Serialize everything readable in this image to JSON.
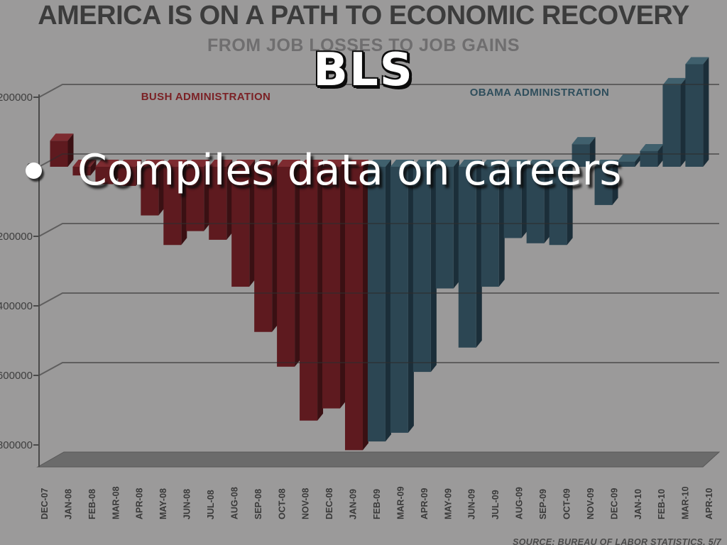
{
  "header": {
    "title": "AMERICA IS ON A PATH TO ECONOMIC RECOVERY",
    "subtitle": "FROM JOB LOSSES TO JOB GAINS"
  },
  "overlay": {
    "heading": "BLS",
    "bullet_text": "Compiles data on careers"
  },
  "chart_data": {
    "type": "bar",
    "title": "AMERICA IS ON A PATH TO ECONOMIC RECOVERY",
    "subtitle": "FROM JOB LOSSES TO JOB GAINS",
    "xlabel": "",
    "ylabel": "",
    "ylim": [
      -800000,
      200000
    ],
    "grid": true,
    "legend_position": "none",
    "y_tick_values": [
      200000,
      0,
      -200000,
      -400000,
      -600000,
      -800000
    ],
    "y_tick_labels_visible": [
      "00000",
      "0",
      "00000",
      "00000",
      "00000",
      "00000"
    ],
    "categories": [
      "DEC-07",
      "JAN-08",
      "FEB-08",
      "MAR-08",
      "APR-08",
      "MAY-08",
      "JUN-08",
      "JUL-08",
      "AUG-08",
      "SEP-08",
      "OCT-08",
      "NOV-08",
      "DEC-08",
      "JAN-09",
      "FEB-09",
      "MAR-09",
      "APR-09",
      "MAY-09",
      "JUN-09",
      "JUL-09",
      "AUG-09",
      "SEP-09",
      "OCT-09",
      "NOV-09",
      "DEC-09",
      "JAN-10",
      "FEB-10",
      "MAR-10",
      "APR-10"
    ],
    "values": [
      75000,
      -25000,
      -50000,
      -55000,
      -140000,
      -225000,
      -185000,
      -210000,
      -345000,
      -475000,
      -575000,
      -730000,
      -695000,
      -815000,
      -790000,
      -765000,
      -590000,
      -350000,
      -520000,
      -345000,
      -205000,
      -220000,
      -225000,
      65000,
      -110000,
      15000,
      45000,
      235000,
      295000
    ],
    "series_split": {
      "bush_label": "BUSH ADMINISTRATION",
      "bush_months": 14,
      "obama_label": "OBAMA ADMINISTRATION",
      "obama_months": 15
    },
    "source_note": "SOURCE: BUREAU OF LABOR STATISTICS, 5/7",
    "colors": {
      "bush_front": "#5e1a1f",
      "bush_side": "#3a1013",
      "bush_top": "#7d2b30",
      "obama_front": "#2c4653",
      "obama_side": "#1b2e39",
      "obama_top": "#40606d",
      "background": "#9b9a9a",
      "floor": "#6b6b6b",
      "gridline": "#2e2e2e",
      "axis": "#4a4a4a",
      "axis_text": "#3e3e3e",
      "month_text": "#3a3a3a",
      "bush_label_color": "#7b2125",
      "obama_label_color": "#2f4e5c",
      "source_color": "#4a4a4a"
    }
  }
}
